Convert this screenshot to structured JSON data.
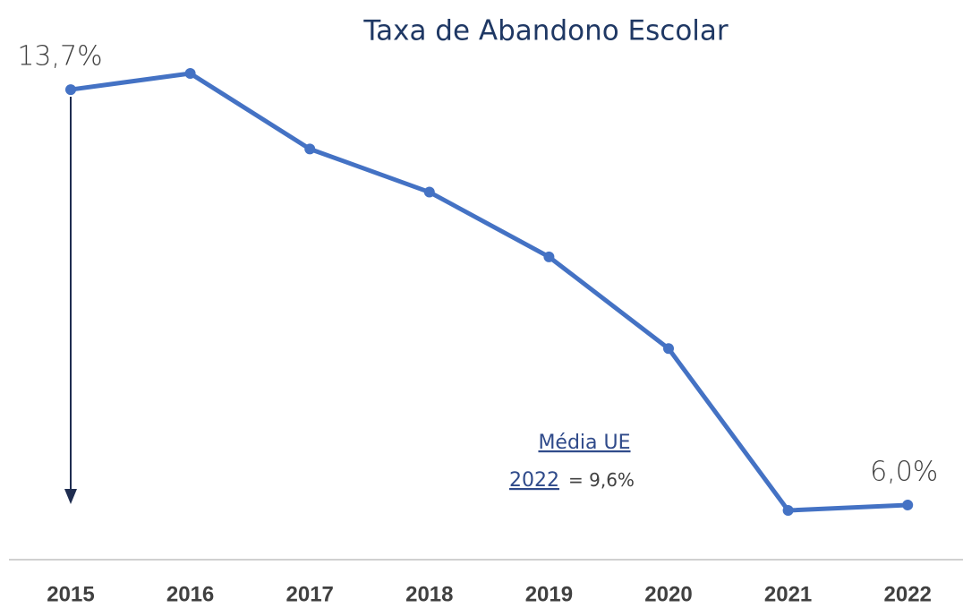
{
  "chart_data": {
    "type": "line",
    "title": "Taxa de Abandono Escolar",
    "categories": [
      "2015",
      "2016",
      "2017",
      "2018",
      "2019",
      "2020",
      "2021",
      "2022"
    ],
    "series": [
      {
        "color": "#4472c4",
        "values": [
          13.7,
          14.0,
          12.6,
          11.8,
          10.6,
          8.9,
          5.9,
          6.0
        ],
        "value_labels": [
          "13,7%",
          null,
          null,
          null,
          null,
          null,
          null,
          "6,0%"
        ]
      }
    ],
    "annotation": {
      "line1": "Média UE",
      "line2": "2022",
      "line3": "= 9,6%"
    }
  }
}
